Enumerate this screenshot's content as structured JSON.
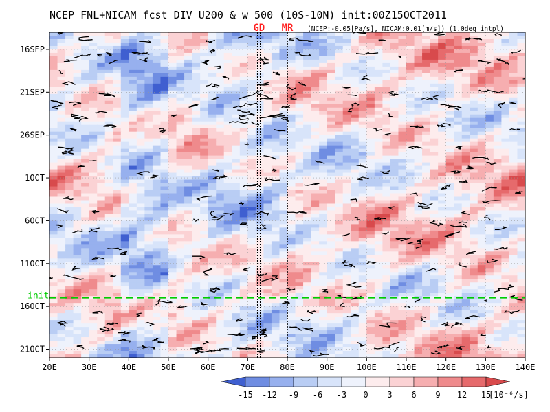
{
  "chart_data": {
    "type": "heatmap",
    "title": "NCEP_FNL+NICAM_fcst DIV U200 & w 500 (10S-10N) init:00Z15OCT2011",
    "subtitle": "(NCEP:-0.05[Pa/s], NICAM:0.01[m/s]) (1.0deg intpl)",
    "x_axis": {
      "range": [
        20,
        140
      ],
      "ticks": [
        20,
        30,
        40,
        50,
        60,
        70,
        80,
        90,
        100,
        110,
        120,
        130,
        140
      ],
      "tick_labels": [
        "20E",
        "30E",
        "40E",
        "50E",
        "60E",
        "70E",
        "80E",
        "90E",
        "100E",
        "110E",
        "120E",
        "130E",
        "140E"
      ]
    },
    "y_axis": {
      "range_days_from_16SEP": [
        -2,
        36
      ],
      "ticks_days_from_16SEP": [
        0,
        5,
        10,
        15,
        20,
        25,
        30,
        35
      ],
      "tick_labels": [
        "16SEP",
        "21SEP",
        "26SEP",
        "1OCT",
        "6OCT",
        "11OCT",
        "16OCT",
        "21OCT"
      ],
      "direction": "time increases downward"
    },
    "init_line": {
      "label": "init",
      "y_days_from_16SEP": 29,
      "color": "#00cc00"
    },
    "markers": [
      {
        "label": "GD",
        "lons": [
          72.5,
          73.2
        ],
        "color": "#ff2020"
      },
      {
        "label": "MR",
        "lons": [
          80.0
        ],
        "color": "#ff2020"
      }
    ],
    "colorbar": {
      "levels": [
        -15,
        -12,
        -9,
        -6,
        -3,
        0,
        3,
        6,
        9,
        12,
        15
      ],
      "level_labels": [
        "-15",
        "-12",
        "-9",
        "-6",
        "-3",
        "0",
        "3",
        "6",
        "9",
        "12",
        "15"
      ],
      "units": "[10⁻⁶/s]",
      "colors": [
        "#3f5fd0",
        "#6f8de2",
        "#97b0ee",
        "#b9cdf4",
        "#d8e4fa",
        "#eef2fc",
        "#fdeced",
        "#fbd2d4",
        "#f6aeb0",
        "#ef8a8c",
        "#e66a6c",
        "#d84a4c"
      ]
    },
    "grid": true,
    "contour_color": "#000000"
  }
}
